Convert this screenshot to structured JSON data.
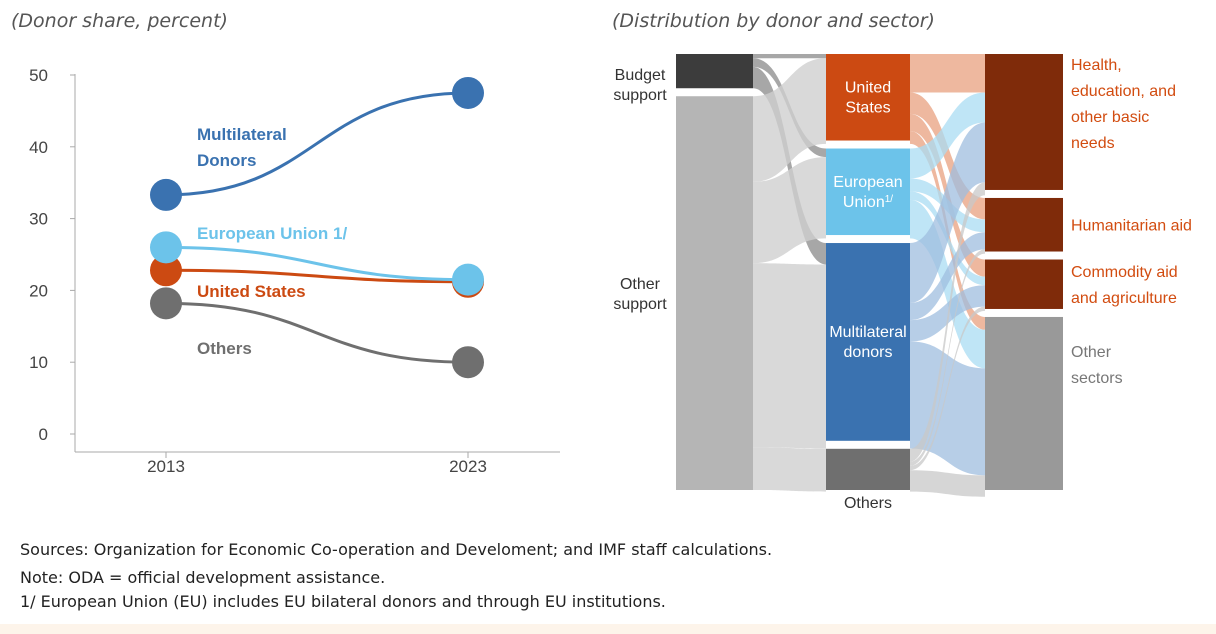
{
  "left_subtitle": "(Donor share, percent)",
  "right_subtitle": "(Distribution by donor and sector)",
  "notes": {
    "sources": "Sources: Organization for Economic Co-operation and Develoment; and IMF staff calculations.",
    "note": "Note: ODA  = official development assistance.",
    "footnote": "1/ European Union (EU) includes EU bilateral donors and through EU institutions."
  },
  "colors": {
    "multilateral": "#3a72b0",
    "eu": "#6cc3ea",
    "us": "#cc4a12",
    "others": "#6f6f6f",
    "sector": "#7f2b0a",
    "sector_label": "#d24c10",
    "gray": "#b5b5b5",
    "dark": "#3c3c3c"
  },
  "chart_data": [
    {
      "type": "line",
      "title": "",
      "x": [
        "2013",
        "2023"
      ],
      "ylim": [
        0,
        50
      ],
      "yticks": [
        "0",
        "10",
        "20",
        "30",
        "40",
        "50"
      ],
      "series": [
        {
          "name": "Multilateral Donors",
          "label_lines": [
            "Multilateral",
            "Donors"
          ],
          "values": [
            33.3,
            47.5
          ],
          "color": "#3a72b0"
        },
        {
          "name": "European Union 1/",
          "label_lines": [
            "European Union 1/"
          ],
          "values": [
            26,
            21.5
          ],
          "color": "#6cc3ea"
        },
        {
          "name": "United States",
          "label_lines": [
            "United States"
          ],
          "values": [
            22.8,
            21.2
          ],
          "color": "#cc4a12"
        },
        {
          "name": "Others",
          "label_lines": [
            "Others"
          ],
          "values": [
            18.2,
            10
          ],
          "color": "#6f6f6f"
        }
      ]
    },
    {
      "type": "sankey",
      "title": "",
      "sources": [
        {
          "name": "Budget support",
          "label_lines": [
            "Budget",
            "support"
          ],
          "value": 8
        },
        {
          "name": "Other support",
          "label_lines": [
            "Other",
            "support"
          ],
          "value": 92
        }
      ],
      "donors": [
        {
          "name": "United States",
          "label_lines": [
            "United",
            "States"
          ],
          "value": 21
        },
        {
          "name": "European Union 1/",
          "label_lines": [
            "European",
            "Union"
          ],
          "sup": "1/",
          "value": 21
        },
        {
          "name": "Multilateral donors",
          "label_lines": [
            "Multilateral",
            "donors"
          ],
          "value": 48
        },
        {
          "name": "Others",
          "label_lines": [
            "Others"
          ],
          "value": 10
        }
      ],
      "sectors": [
        {
          "name": "Health, education, and other basic needs",
          "label_lines": [
            "Health,",
            "education, and",
            "other basic",
            "needs"
          ],
          "value": 33
        },
        {
          "name": "Humanitarian aid",
          "label_lines": [
            "Humanitarian aid"
          ],
          "value": 13
        },
        {
          "name": "Commodity aid and agriculture",
          "label_lines": [
            "Commodity aid",
            "and agriculture"
          ],
          "value": 12
        },
        {
          "name": "Other sectors",
          "label_lines": [
            "Other",
            "sectors"
          ],
          "value": 42
        }
      ],
      "flows_source_to_donor": [
        {
          "from": "Budget support",
          "to": "United States",
          "value": 1
        },
        {
          "from": "Budget support",
          "to": "European Union 1/",
          "value": 2
        },
        {
          "from": "Budget support",
          "to": "Multilateral donors",
          "value": 5
        },
        {
          "from": "Other support",
          "to": "United States",
          "value": 20
        },
        {
          "from": "Other support",
          "to": "European Union 1/",
          "value": 19
        },
        {
          "from": "Other support",
          "to": "Multilateral donors",
          "value": 43
        },
        {
          "from": "Other support",
          "to": "Others",
          "value": 10
        }
      ],
      "flows_donor_to_sector": [
        {
          "from": "United States",
          "to": "Health, education, and other basic needs",
          "value": 9
        },
        {
          "from": "United States",
          "to": "Humanitarian aid",
          "value": 5
        },
        {
          "from": "United States",
          "to": "Commodity aid and agriculture",
          "value": 4
        },
        {
          "from": "United States",
          "to": "Other sectors",
          "value": 3
        },
        {
          "from": "European Union 1/",
          "to": "Health, education, and other basic needs",
          "value": 7
        },
        {
          "from": "European Union 1/",
          "to": "Humanitarian aid",
          "value": 3
        },
        {
          "from": "European Union 1/",
          "to": "Commodity aid and agriculture",
          "value": 2
        },
        {
          "from": "European Union 1/",
          "to": "Other sectors",
          "value": 9
        },
        {
          "from": "Multilateral donors",
          "to": "Health, education, and other basic needs",
          "value": 14
        },
        {
          "from": "Multilateral donors",
          "to": "Humanitarian aid",
          "value": 4
        },
        {
          "from": "Multilateral donors",
          "to": "Commodity aid and agriculture",
          "value": 5
        },
        {
          "from": "Multilateral donors",
          "to": "Other sectors",
          "value": 25
        },
        {
          "from": "Others",
          "to": "Health, education, and other basic needs",
          "value": 3
        },
        {
          "from": "Others",
          "to": "Humanitarian aid",
          "value": 1
        },
        {
          "from": "Others",
          "to": "Commodity aid and agriculture",
          "value": 1
        },
        {
          "from": "Others",
          "to": "Other sectors",
          "value": 5
        }
      ]
    }
  ]
}
